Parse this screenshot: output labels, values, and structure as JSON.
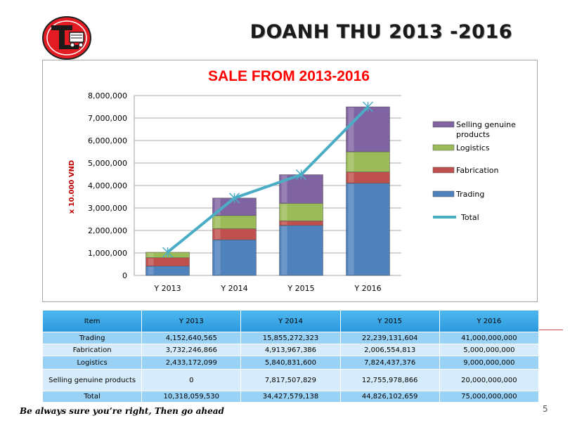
{
  "slide": {
    "title": "DOANH THU 2013 -2016",
    "tagline": "Be always sure you’re right, Then go ahead",
    "page_number": "5",
    "logo_icon": "company-logo-truck-t"
  },
  "chart_data": {
    "type": "bar",
    "stacked": true,
    "title": "SALE FROM 2013-2016",
    "ylabel": "x 10.000 VND",
    "xlabel": "",
    "ylim": [
      0,
      8000000
    ],
    "yticks": [
      "0",
      "1,000,000",
      "2,000,000",
      "3,000,000",
      "4,000,000",
      "5,000,000",
      "6,000,000",
      "7,000,000",
      "8,000,000"
    ],
    "categories": [
      "Y 2013",
      "Y 2014",
      "Y 2015",
      "Y 2016"
    ],
    "series": [
      {
        "name": "Trading",
        "values": [
          415264,
          1585527,
          2223913,
          4100000
        ],
        "color": "#4f81bd"
      },
      {
        "name": "Fabrication",
        "values": [
          373225,
          491397,
          200655,
          500000
        ],
        "color": "#c0504d"
      },
      {
        "name": "Logistics",
        "values": [
          243317,
          584083,
          782444,
          900000
        ],
        "color": "#9bbb59"
      },
      {
        "name": "Selling genuine products",
        "values": [
          0,
          781751,
          1275598,
          2000000
        ],
        "color": "#8064a2"
      }
    ],
    "line": {
      "name": "Total",
      "values": [
        1031806,
        3442758,
        4482610,
        7500000
      ],
      "color": "#4bacc6"
    },
    "legend_order": [
      "Selling genuine products",
      "Logistics",
      "Fabrication",
      "Trading",
      "Total"
    ],
    "legend_position": "right",
    "grid": true
  },
  "table": {
    "headers": [
      "Item",
      "Y 2013",
      "Y 2014",
      "Y 2015",
      "Y 2016"
    ],
    "rows": [
      [
        "Trading",
        "4,152,640,565",
        "15,855,272,323",
        "22,239,131,604",
        "41,000,000,000"
      ],
      [
        "Fabrication",
        "3,732,246,866",
        "4,913,967,386",
        "2,006,554,813",
        "5,000,000,000"
      ],
      [
        "Logistics",
        "2,433,172,099",
        "5,840,831,600",
        "7,824,437,376",
        "9,000,000,000"
      ],
      [
        "Selling genuine products",
        "0",
        "7,817,507,829",
        "12,755,978,866",
        "20,000,000,000"
      ],
      [
        "Total",
        "10,318,059,530",
        "34,427,579,138",
        "44,826,102,659",
        "75,000,000,000"
      ]
    ]
  }
}
